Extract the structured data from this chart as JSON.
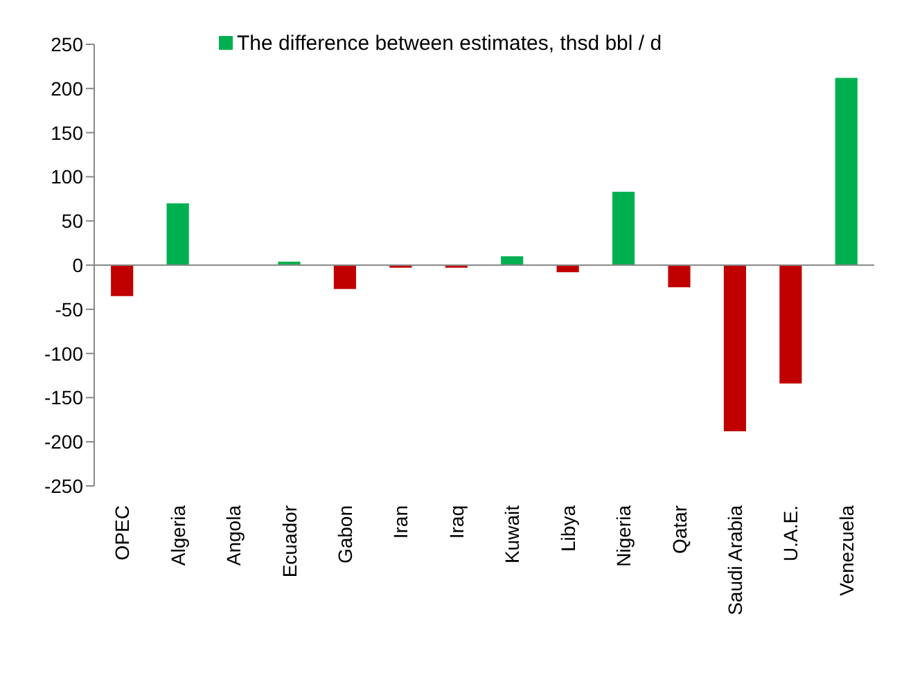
{
  "chart_data": {
    "type": "bar",
    "categories": [
      "OPEC",
      "Algeria",
      "Angola",
      "Ecuador",
      "Gabon",
      "Iran",
      "Iraq",
      "Kuwait",
      "Libya",
      "Nigeria",
      "Qatar",
      "Saudi Arabia",
      "U.A.E.",
      "Venezuela"
    ],
    "series": [
      {
        "name": "The difference between estimates, thsd bbl / d",
        "color": "#00b050",
        "values": [
          -35,
          70,
          null,
          4,
          -27,
          -3,
          -3,
          10,
          -8,
          83,
          -25,
          -188,
          -134,
          212
        ],
        "colors": [
          "#c00000",
          "#00b050",
          "#00b050",
          "#00b050",
          "#c00000",
          "#c00000",
          "#c00000",
          "#00b050",
          "#c00000",
          "#00b050",
          "#c00000",
          "#c00000",
          "#c00000",
          "#00b050"
        ]
      }
    ],
    "ylim": [
      -250,
      250
    ],
    "yticks": [
      -250,
      -200,
      -150,
      -100,
      -50,
      0,
      50,
      100,
      150,
      200,
      250
    ],
    "legend": "top"
  }
}
